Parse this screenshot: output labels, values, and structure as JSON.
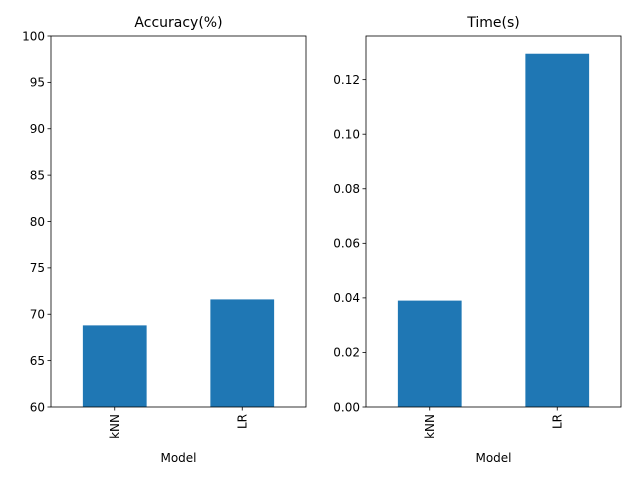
{
  "chart_data": [
    {
      "type": "bar",
      "title": "Accuracy(%)",
      "xlabel": "Model",
      "ylabel": "",
      "categories": [
        "kNN",
        "LR"
      ],
      "values": [
        68.8,
        71.6
      ],
      "ylim": [
        60,
        100
      ],
      "yticks": [
        60,
        65,
        70,
        75,
        80,
        85,
        90,
        95,
        100
      ],
      "ytick_labels": [
        "60",
        "65",
        "70",
        "75",
        "80",
        "85",
        "90",
        "95",
        "100"
      ],
      "bar_color": "#1f77b4",
      "grid": false
    },
    {
      "type": "bar",
      "title": "Time(s)",
      "xlabel": "Model",
      "ylabel": "",
      "categories": [
        "kNN",
        "LR"
      ],
      "values": [
        0.039,
        0.1295
      ],
      "ylim": [
        0,
        0.136
      ],
      "yticks": [
        0,
        0.02,
        0.04,
        0.06,
        0.08,
        0.1,
        0.12
      ],
      "ytick_labels": [
        "0.00",
        "0.02",
        "0.04",
        "0.06",
        "0.08",
        "0.10",
        "0.12"
      ],
      "bar_color": "#1f77b4",
      "grid": false
    }
  ]
}
